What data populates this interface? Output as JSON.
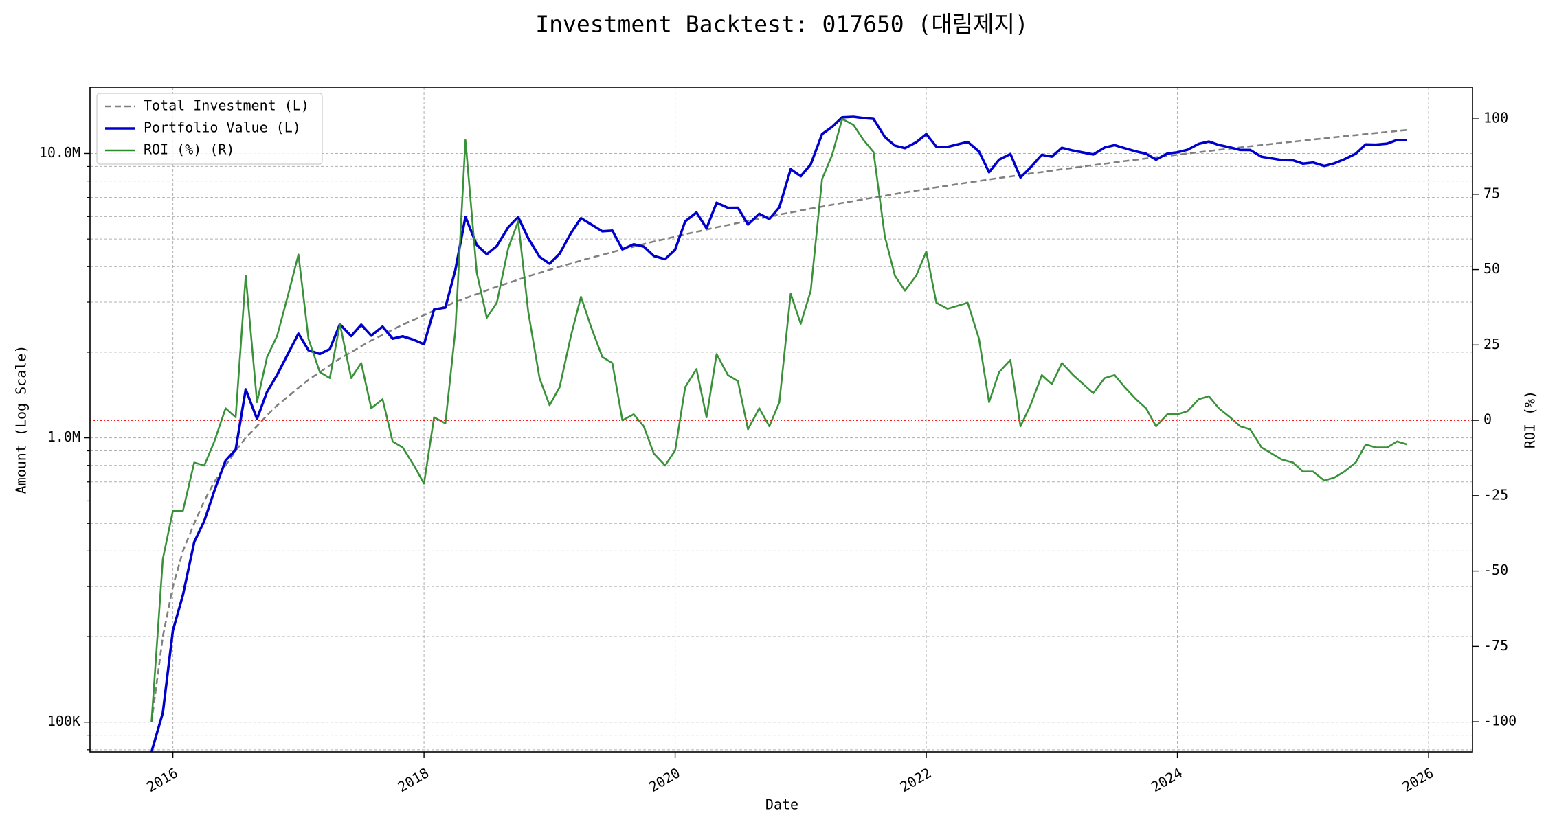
{
  "chart_data": {
    "type": "line",
    "title": "Investment Backtest: 017650 (대림제지)",
    "xlabel": "Date",
    "ylabel": "Amount (Log Scale)",
    "y2label": "ROI (%)",
    "ylabel_color": "#0000cd",
    "y2label_color": "#228b22",
    "yscale": "log",
    "grid": true,
    "legend": "upper left",
    "xlim": [
      2015.34,
      2026.35
    ],
    "xticks": [
      2016,
      2018,
      2020,
      2022,
      2024,
      2026
    ],
    "ylim": [
      78600,
      17100000
    ],
    "yticks": [
      {
        "value": 100000,
        "label": "100K"
      },
      {
        "value": 1000000,
        "label": "1.0M"
      },
      {
        "value": 10000000,
        "label": "10.0M"
      }
    ],
    "yminorticks": [
      80000,
      90000,
      200000,
      300000,
      400000,
      500000,
      600000,
      700000,
      800000,
      900000,
      2000000,
      3000000,
      4000000,
      5000000,
      6000000,
      7000000,
      8000000,
      9000000
    ],
    "y2lim": [
      -110,
      110.5
    ],
    "y2ticks": [
      -100,
      -75,
      -50,
      -25,
      0,
      25,
      50,
      75,
      100
    ],
    "hline": {
      "value": 0,
      "axis": "y2",
      "color": "#ff0000"
    },
    "x": [
      2015.83,
      2015.92,
      2016.0,
      2016.08,
      2016.17,
      2016.25,
      2016.33,
      2016.42,
      2016.5,
      2016.58,
      2016.67,
      2016.75,
      2016.83,
      2016.92,
      2017.0,
      2017.08,
      2017.17,
      2017.25,
      2017.33,
      2017.42,
      2017.5,
      2017.58,
      2017.67,
      2017.75,
      2017.83,
      2017.92,
      2018.0,
      2018.08,
      2018.17,
      2018.25,
      2018.33,
      2018.42,
      2018.5,
      2018.58,
      2018.67,
      2018.75,
      2018.83,
      2018.92,
      2019.0,
      2019.08,
      2019.17,
      2019.25,
      2019.33,
      2019.42,
      2019.5,
      2019.58,
      2019.67,
      2019.75,
      2019.83,
      2019.92,
      2020.0,
      2020.08,
      2020.17,
      2020.25,
      2020.33,
      2020.42,
      2020.5,
      2020.58,
      2020.67,
      2020.75,
      2020.83,
      2020.92,
      2021.0,
      2021.08,
      2021.17,
      2021.25,
      2021.33,
      2021.42,
      2021.5,
      2021.58,
      2021.67,
      2021.75,
      2021.83,
      2021.92,
      2022.0,
      2022.08,
      2022.17,
      2022.25,
      2022.33,
      2022.42,
      2022.5,
      2022.58,
      2022.67,
      2022.75,
      2022.83,
      2022.92,
      2023.0,
      2023.08,
      2023.17,
      2023.25,
      2023.33,
      2023.42,
      2023.5,
      2023.58,
      2023.67,
      2023.75,
      2023.83,
      2023.92,
      2024.0,
      2024.08,
      2024.17,
      2024.25,
      2024.33,
      2024.42,
      2024.5,
      2024.58,
      2024.67,
      2024.75,
      2024.83,
      2024.92,
      2025.0,
      2025.08,
      2025.17,
      2025.25,
      2025.33,
      2025.42,
      2025.5,
      2025.58,
      2025.67,
      2025.75,
      2025.83
    ],
    "series": [
      {
        "name": "Total Investment (L)",
        "color": "#808080",
        "linestyle": "dashed",
        "linewidth": 2.6,
        "axis": "y",
        "values": [
          100000,
          200000,
          300000,
          400000,
          500000,
          600000,
          700000,
          800000,
          900000,
          1000000,
          1100000,
          1200000,
          1300000,
          1400000,
          1500000,
          1600000,
          1700000,
          1800000,
          1900000,
          2000000,
          2100000,
          2200000,
          2300000,
          2400000,
          2500000,
          2600000,
          2700000,
          2800000,
          2900000,
          3000000,
          3100000,
          3200000,
          3300000,
          3400000,
          3500000,
          3600000,
          3700000,
          3800000,
          3900000,
          4000000,
          4100000,
          4200000,
          4300000,
          4400000,
          4500000,
          4600000,
          4700000,
          4800000,
          4900000,
          5000000,
          5100000,
          5200000,
          5300000,
          5400000,
          5500000,
          5600000,
          5700000,
          5800000,
          5900000,
          6000000,
          6100000,
          6200000,
          6300000,
          6400000,
          6500000,
          6600000,
          6700000,
          6800000,
          6900000,
          7000000,
          7100000,
          7200000,
          7300000,
          7400000,
          7500000,
          7600000,
          7700000,
          7800000,
          7900000,
          8000000,
          8100000,
          8200000,
          8300000,
          8400000,
          8500000,
          8600000,
          8700000,
          8800000,
          8900000,
          9000000,
          9100000,
          9200000,
          9300000,
          9400000,
          9500000,
          9600000,
          9700000,
          9800000,
          9900000,
          10000000,
          10100000,
          10200000,
          10300000,
          10400000,
          10500000,
          10600000,
          10700000,
          10800000,
          10900000,
          11000000,
          11100000,
          11200000,
          11300000,
          11400000,
          11500000,
          11600000,
          11700000,
          11800000,
          11900000,
          12000000,
          12100000
        ]
      },
      {
        "name": "Portfolio Value (L)",
        "color": "#0000cd",
        "linestyle": "solid",
        "linewidth": 3.6,
        "axis": "y",
        "values": [
          0,
          108000,
          210000,
          280000,
          430000,
          510000,
          651000,
          832000,
          909000,
          1480000,
          1166000,
          1452000,
          1664000,
          1988000,
          2325000,
          2032000,
          1972000,
          2052000,
          2508000,
          2280000,
          2499000,
          2288000,
          2461000,
          2232000,
          2275000,
          2210000,
          2133000,
          2828000,
          2871000,
          3900000,
          5983000,
          4768000,
          4422000,
          4726000,
          5495000,
          5976000,
          5032000,
          4332000,
          4095000,
          4440000,
          5248000,
          5922000,
          5633000,
          5324000,
          5355000,
          4600000,
          4794000,
          4704000,
          4361000,
          4250000,
          4590000,
          5772000,
          6201000,
          5454000,
          6710000,
          6440000,
          6441000,
          5626000,
          6136000,
          5880000,
          6466000,
          8804000,
          8316000,
          9152000,
          11700000,
          12408000,
          13400000,
          13464000,
          13317000,
          13230000,
          11431000,
          10656000,
          10439000,
          10952000,
          11700000,
          10564000,
          10549000,
          10764000,
          10981000,
          10160000,
          8586000,
          9512000,
          9960000,
          8232000,
          8925000,
          9890000,
          9744000,
          10472000,
          10235000,
          10080000,
          9919000,
          10488000,
          10695000,
          10434000,
          10165000,
          9984000,
          9506000,
          9996000,
          10098000,
          10300000,
          10807000,
          11016000,
          10712000,
          10504000,
          10290000,
          10282000,
          9737000,
          9612000,
          9483000,
          9460000,
          9213000,
          9296000,
          9040000,
          9234000,
          9545000,
          9976000,
          10764000,
          10738000,
          10829000,
          11160000,
          11132000
        ]
      },
      {
        "name": "ROI (%) (R)",
        "color": "#2e8b2e",
        "linestyle": "solid",
        "linewidth": 2.6,
        "axis": "y2",
        "values": [
          -100,
          -46,
          -30,
          -30,
          -14,
          -15,
          -7,
          4,
          1,
          48,
          6,
          21,
          28,
          42,
          55,
          27,
          16,
          14,
          32,
          14,
          19,
          4,
          7,
          -7,
          -9,
          -15,
          -21,
          1,
          -1,
          30,
          93,
          49,
          34,
          39,
          57,
          66,
          36,
          14,
          5,
          11,
          28,
          41,
          31,
          21,
          19,
          0,
          2,
          -2,
          -11,
          -15,
          -10,
          11,
          17,
          1,
          22,
          15,
          13,
          -3,
          4,
          -2,
          6,
          42,
          32,
          43,
          80,
          88,
          100,
          98,
          93,
          89,
          61,
          48,
          43,
          48,
          56,
          39,
          37,
          38,
          39,
          27,
          6,
          16,
          20,
          -2,
          5,
          15,
          12,
          19,
          15,
          12,
          9,
          14,
          15,
          11,
          7,
          4,
          -2,
          2,
          2,
          3,
          7,
          8,
          4,
          1,
          -2,
          -3,
          -9,
          -11,
          -13,
          -14,
          -17,
          -17,
          -20,
          -19,
          -17,
          -14,
          -8,
          -9,
          -9,
          -7,
          -8
        ]
      }
    ]
  }
}
